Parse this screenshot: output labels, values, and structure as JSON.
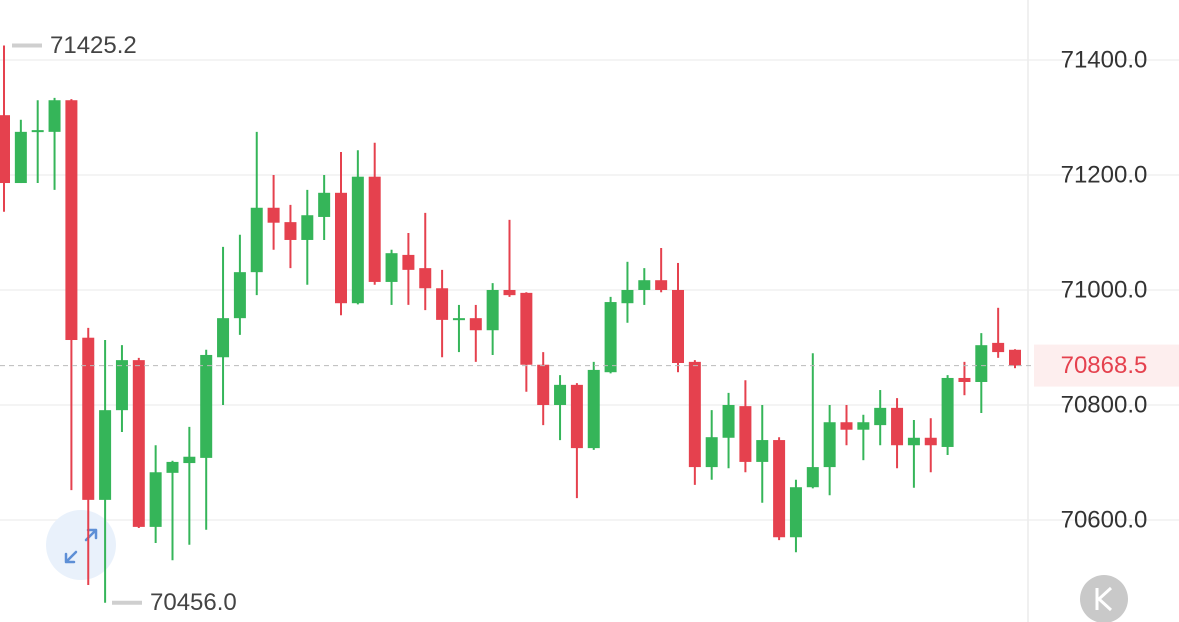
{
  "chart_data": {
    "type": "candlestick",
    "up_color": "#35b559",
    "down_color": "#e5414e",
    "open": [
      71304,
      71186,
      71275,
      71275,
      71330,
      70917,
      70635,
      70791,
      70878,
      70588,
      70682,
      70699,
      70708,
      70883,
      70951,
      71031,
      71143,
      71118,
      71087,
      71127,
      71169,
      70977,
      71197,
      71014,
      71061,
      71038,
      71003,
      70948,
      70951,
      70930,
      71000,
      70995,
      70870,
      70800,
      70835,
      70725,
      70857,
      70977,
      71000,
      71017,
      71000,
      70875,
      70692,
      70743,
      70798,
      70701,
      70739,
      70570,
      70657,
      70692,
      70770,
      70757,
      70765,
      70795,
      70730,
      70743,
      70727,
      70847,
      70840,
      70908,
      70896
    ],
    "high": [
      71425.2,
      71296,
      71330,
      71334,
      71332,
      70934,
      70913,
      70904,
      70882,
      70730,
      70703,
      70762,
      70896,
      71075,
      71096,
      71275,
      71200,
      71148,
      71174,
      71200,
      71240,
      71243,
      71256,
      71070,
      71099,
      71134,
      71035,
      70974,
      70974,
      71012,
      71122,
      70996,
      70892,
      70852,
      70838,
      70875,
      70988,
      71049,
      71038,
      71073,
      71047,
      70878,
      70791,
      70821,
      70843,
      70800,
      70744,
      70670,
      70890,
      70800,
      70800,
      70783,
      70826,
      70812,
      70774,
      70777,
      70852,
      70875,
      70925,
      70969,
      70897
    ],
    "low": [
      71136,
      71186,
      71186,
      71174,
      70652,
      70487,
      70456,
      70753,
      70586,
      70560,
      70530,
      70557,
      70583,
      70800,
      70922,
      70991,
      71070,
      71038,
      71009,
      71087,
      70956,
      70975,
      71009,
      70974,
      70974,
      70965,
      70883,
      70892,
      70875,
      70887,
      70988,
      70823,
      70765,
      70739,
      70638,
      70722,
      70855,
      70943,
      70974,
      70996,
      70857,
      70661,
      70670,
      70690,
      70683,
      70630,
      70565,
      70544,
      70655,
      70643,
      70730,
      70704,
      70730,
      70690,
      70656,
      70683,
      70713,
      70817,
      70786,
      70882,
      70864
    ],
    "close": [
      71186,
      71275,
      71278,
      71330,
      70913,
      70635,
      70791,
      70878,
      70588,
      70683,
      70701,
      70710,
      70887,
      70951,
      71031,
      71143,
      71117,
      71087,
      71130,
      71169,
      70977,
      71197,
      71014,
      71064,
      71035,
      71003,
      70948,
      70951,
      70930,
      71000,
      70991,
      70870,
      70800,
      70835,
      70725,
      70861,
      70979,
      71000,
      71017,
      71000,
      70873,
      70692,
      70744,
      70800,
      70701,
      70739,
      70570,
      70657,
      70692,
      70770,
      70757,
      70770,
      70795,
      70730,
      70743,
      70730,
      70847,
      70840,
      70904,
      70892,
      70868.5
    ],
    "ylim": [
      70422.6,
      71504.3
    ],
    "yticks": [
      {
        "value": 71400,
        "label": "71400.0"
      },
      {
        "value": 71200,
        "label": "71200.0"
      },
      {
        "value": 71000,
        "label": "71000.0"
      },
      {
        "value": 70800,
        "label": "70800.0"
      },
      {
        "value": 70600,
        "label": "70600.0"
      }
    ],
    "grid": true,
    "max_label": 71425.2,
    "min_label": {
      "value": 70456,
      "label": "70456.0"
    },
    "last_price": 70868.5,
    "last_price_color": "#e5414e"
  }
}
